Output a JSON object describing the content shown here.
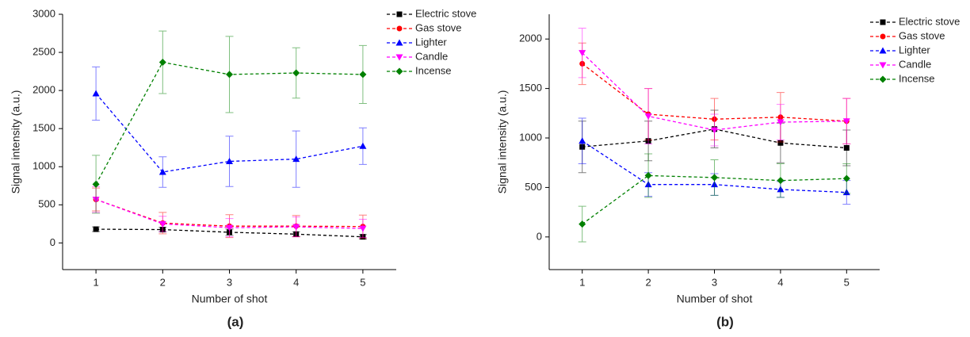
{
  "chart_data": [
    {
      "type": "line",
      "caption": "(a)",
      "x_label": "Number of shot",
      "y_label": "Signal intensity (a.u.)",
      "x": [
        1,
        2,
        3,
        4,
        5
      ],
      "xlim": [
        0.5,
        5.5
      ],
      "xticks": [
        1,
        2,
        3,
        4,
        5
      ],
      "ylim": [
        -350,
        3000
      ],
      "yticks": [
        0,
        500,
        1000,
        1500,
        2000,
        2500,
        3000
      ],
      "series": [
        {
          "name": "Electric stove",
          "color": "#000000",
          "marker": "square",
          "values": [
            180,
            175,
            140,
            115,
            80
          ],
          "errors": [
            30,
            30,
            40,
            30,
            30
          ]
        },
        {
          "name": "Gas stove",
          "color": "#ff0000",
          "marker": "circle",
          "values": [
            570,
            260,
            220,
            220,
            215
          ],
          "errors": [
            150,
            140,
            150,
            140,
            150
          ]
        },
        {
          "name": "Lighter",
          "color": "#0000ff",
          "marker": "triangle-up",
          "values": [
            1960,
            930,
            1070,
            1100,
            1270
          ],
          "errors": [
            350,
            200,
            330,
            370,
            240
          ]
        },
        {
          "name": "Candle",
          "color": "#ff00ff",
          "marker": "triangle-down",
          "values": [
            570,
            250,
            200,
            210,
            190
          ],
          "errors": [
            170,
            100,
            120,
            130,
            120
          ]
        },
        {
          "name": "Incense",
          "color": "#008000",
          "marker": "diamond",
          "values": [
            770,
            2370,
            2210,
            2230,
            2210
          ],
          "errors": [
            380,
            410,
            500,
            330,
            380
          ]
        }
      ]
    },
    {
      "type": "line",
      "caption": "(b)",
      "x_label": "Number of shot",
      "y_label": "Signal intensity (a.u.)",
      "x": [
        1,
        2,
        3,
        4,
        5
      ],
      "xlim": [
        0.5,
        5.5
      ],
      "xticks": [
        1,
        2,
        3,
        4,
        5
      ],
      "ylim": [
        -330,
        2250
      ],
      "yticks": [
        0,
        500,
        1000,
        1500,
        2000
      ],
      "series": [
        {
          "name": "Electric stove",
          "color": "#000000",
          "marker": "square",
          "values": [
            910,
            970,
            1090,
            950,
            900
          ],
          "errors": [
            260,
            200,
            190,
            200,
            180
          ]
        },
        {
          "name": "Gas stove",
          "color": "#ff0000",
          "marker": "circle",
          "values": [
            1750,
            1240,
            1190,
            1210,
            1170
          ],
          "errors": [
            210,
            260,
            210,
            250,
            230
          ]
        },
        {
          "name": "Lighter",
          "color": "#0000ff",
          "marker": "triangle-up",
          "values": [
            970,
            530,
            530,
            480,
            450
          ],
          "errors": [
            230,
            120,
            110,
            80,
            120
          ]
        },
        {
          "name": "Candle",
          "color": "#ff00ff",
          "marker": "triangle-down",
          "values": [
            1860,
            1220,
            1080,
            1160,
            1170
          ],
          "errors": [
            250,
            280,
            160,
            180,
            230
          ]
        },
        {
          "name": "Incense",
          "color": "#008000",
          "marker": "diamond",
          "values": [
            130,
            620,
            600,
            570,
            590
          ],
          "errors": [
            180,
            220,
            180,
            170,
            150
          ]
        }
      ]
    }
  ]
}
